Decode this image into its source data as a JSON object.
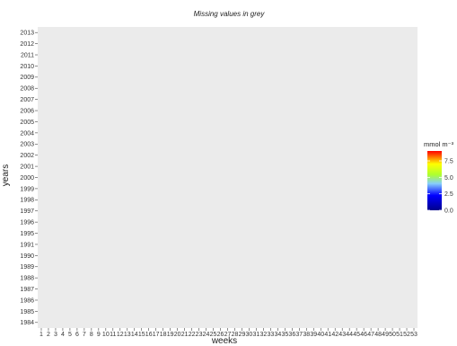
{
  "chart_data": {
    "type": "heatmap",
    "title": "Missing values in grey",
    "xlabel": "weeks",
    "ylabel": "years",
    "x": [
      1,
      2,
      3,
      4,
      5,
      6,
      7,
      8,
      9,
      10,
      11,
      12,
      13,
      14,
      15,
      16,
      17,
      18,
      19,
      20,
      21,
      22,
      23,
      24,
      25,
      26,
      27,
      28,
      29,
      30,
      31,
      32,
      33,
      34,
      35,
      36,
      37,
      38,
      39,
      40,
      41,
      42,
      43,
      44,
      45,
      46,
      47,
      48,
      49,
      50,
      51,
      52,
      53
    ],
    "y": [
      1984,
      1985,
      1986,
      1987,
      1988,
      1989,
      1990,
      1991,
      1995,
      1996,
      1997,
      1998,
      1999,
      2000,
      2001,
      2002,
      2003,
      2004,
      2005,
      2006,
      2007,
      2008,
      2009,
      2010,
      2011,
      2012,
      2013
    ],
    "missing_color": "#808080",
    "no_data_color": "#ebebeb",
    "legend": {
      "title": "mmol m⁻³",
      "position": "right",
      "ticks": [
        "7.5",
        "5.0",
        "2.5",
        "0.0"
      ],
      "range": [
        0,
        9
      ]
    },
    "colorscale": [
      "#00008b",
      "#0000ff",
      "#87cefa",
      "#adff2f",
      "#ffff00",
      "#ff0000"
    ],
    "values": [
      [
        "",
        "",
        "",
        "",
        "",
        "",
        "",
        "",
        "",
        "",
        "",
        "",
        "",
        "",
        "",
        "",
        "",
        "",
        "",
        "",
        "",
        "",
        "",
        "",
        "",
        "",
        "",
        "",
        "",
        "",
        "",
        "",
        "",
        "",
        "",
        "",
        "",
        "",
        "",
        "",
        "",
        "",
        "",
        "",
        "",
        "",
        "",
        "",
        "",
        "",
        "",
        "",
        "",
        "",
        "",
        "",
        "",
        "",
        ""
      ]
    ]
  }
}
